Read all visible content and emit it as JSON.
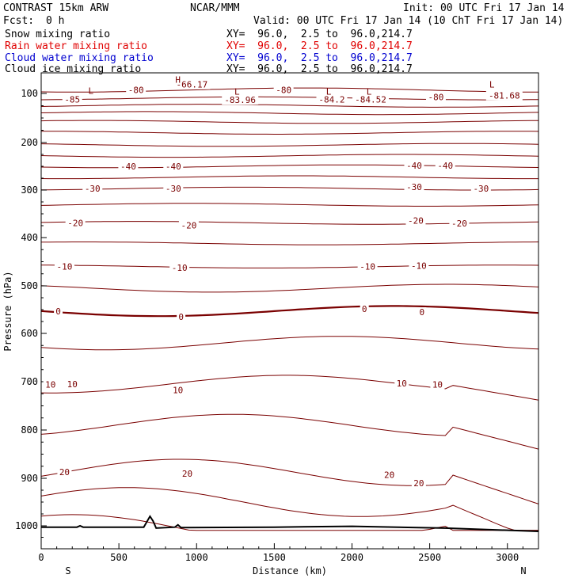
{
  "header": {
    "model": "CONTRAST 15km ARW",
    "center": "NCAR/MMM",
    "init": "Init: 00 UTC Fri 17 Jan 14",
    "fcst_label": "Fcst:",
    "fcst_value": "0 h",
    "valid": "Valid: 00 UTC Fri 17 Jan 14 (10 ChT Fri 17 Jan 14)"
  },
  "fields": [
    {
      "label": "Snow mixing ratio",
      "xy": "XY=  96.0,  2.5 to  96.0,214.7",
      "color": "#000000"
    },
    {
      "label": "Rain water mixing ratio",
      "xy": "XY=  96.0,  2.5 to  96.0,214.7",
      "color": "#e00000"
    },
    {
      "label": "Cloud water mixing ratio",
      "xy": "XY=  96.0,  2.5 to  96.0,214.7",
      "color": "#0000d0"
    },
    {
      "label": "Cloud ice mixing ratio",
      "xy": "XY=  96.0,  2.5 to  96.0,214.7",
      "color": "#000000"
    }
  ],
  "chart_data": {
    "type": "line",
    "title": "",
    "xlabel": "Distance (km)",
    "ylabel": "Pressure (hPa)",
    "xlim": [
      0,
      3200
    ],
    "ylim": [
      1050,
      70
    ],
    "x_ticks": [
      0,
      500,
      1000,
      1500,
      2000,
      2500,
      3000
    ],
    "y_ticks": [
      100,
      200,
      300,
      400,
      500,
      600,
      700,
      800,
      900,
      1000
    ],
    "x_end_labels": {
      "left": "S",
      "right": "N"
    },
    "contour_color": "#7a0000",
    "zero_line_color": "#7a0000",
    "terrain_color": "#000000",
    "isotherms_C": [
      -80,
      -75,
      -70,
      -65,
      -60,
      -55,
      -50,
      -45,
      -40,
      -35,
      -30,
      -25,
      -20,
      -15,
      -10,
      -5,
      0,
      5,
      10,
      15,
      20,
      25,
      30
    ],
    "contour_labels": [
      {
        "text": "-80",
        "x": 610,
        "p": 95
      },
      {
        "text": "-80",
        "x": 1560,
        "p": 95
      },
      {
        "text": "-80",
        "x": 2540,
        "p": 107
      },
      {
        "text": "-85",
        "x": 200,
        "p": 112
      },
      {
        "text": "-66.17",
        "x": 970,
        "p": 87
      },
      {
        "text": "-83.96",
        "x": 1280,
        "p": 113
      },
      {
        "text": "-84.2",
        "x": 1870,
        "p": 112
      },
      {
        "text": "-84.52",
        "x": 2120,
        "p": 112
      },
      {
        "text": "-81.68",
        "x": 2980,
        "p": 104
      },
      {
        "text": "-40",
        "x": 560,
        "p": 250
      },
      {
        "text": "-40",
        "x": 850,
        "p": 250
      },
      {
        "text": "-40",
        "x": 2400,
        "p": 248
      },
      {
        "text": "-40",
        "x": 2600,
        "p": 248
      },
      {
        "text": "-30",
        "x": 330,
        "p": 297
      },
      {
        "text": "-30",
        "x": 850,
        "p": 297
      },
      {
        "text": "-30",
        "x": 2400,
        "p": 293
      },
      {
        "text": "-30",
        "x": 2830,
        "p": 297
      },
      {
        "text": "-20",
        "x": 220,
        "p": 369
      },
      {
        "text": "-20",
        "x": 950,
        "p": 374
      },
      {
        "text": "-20",
        "x": 2410,
        "p": 364
      },
      {
        "text": "-20",
        "x": 2690,
        "p": 370
      },
      {
        "text": "-10",
        "x": 150,
        "p": 460
      },
      {
        "text": "-10",
        "x": 890,
        "p": 462
      },
      {
        "text": "-10",
        "x": 2100,
        "p": 460
      },
      {
        "text": "-10",
        "x": 2430,
        "p": 458
      },
      {
        "text": "0",
        "x": 110,
        "p": 553
      },
      {
        "text": "0",
        "x": 900,
        "p": 565
      },
      {
        "text": "0",
        "x": 2080,
        "p": 548
      },
      {
        "text": "0",
        "x": 2450,
        "p": 555
      },
      {
        "text": "10",
        "x": 60,
        "p": 706
      },
      {
        "text": "10",
        "x": 200,
        "p": 705
      },
      {
        "text": "10",
        "x": 880,
        "p": 717
      },
      {
        "text": "10",
        "x": 2320,
        "p": 703
      },
      {
        "text": "10",
        "x": 2550,
        "p": 706
      },
      {
        "text": "20",
        "x": 150,
        "p": 887
      },
      {
        "text": "20",
        "x": 940,
        "p": 890
      },
      {
        "text": "20",
        "x": 2240,
        "p": 893
      },
      {
        "text": "20",
        "x": 2430,
        "p": 910
      }
    ],
    "tropopause_marks": [
      {
        "text": "L",
        "x": 320,
        "p": 96
      },
      {
        "text": "H",
        "x": 880,
        "p": 80
      },
      {
        "text": "L",
        "x": 1260,
        "p": 97
      },
      {
        "text": "L",
        "x": 1850,
        "p": 97
      },
      {
        "text": "L",
        "x": 2110,
        "p": 97
      },
      {
        "text": "L",
        "x": 2900,
        "p": 87
      }
    ]
  }
}
